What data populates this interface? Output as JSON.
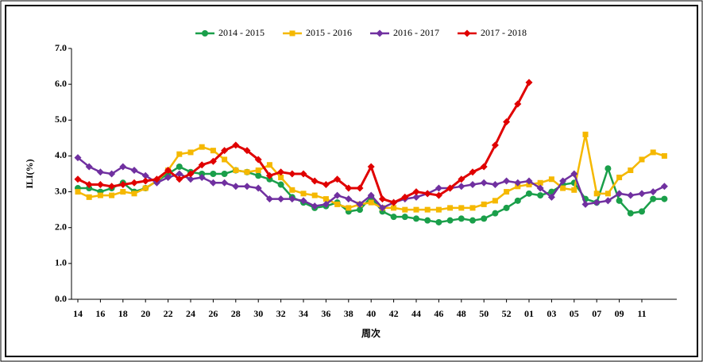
{
  "chart_data": {
    "type": "line",
    "x_label": "周次",
    "y_label": "ILI(%)",
    "categories": [
      "14",
      null,
      "16",
      null,
      "18",
      null,
      "20",
      null,
      "22",
      null,
      "24",
      null,
      "26",
      null,
      "28",
      null,
      "30",
      null,
      "32",
      null,
      "34",
      null,
      "36",
      null,
      "38",
      null,
      "40",
      null,
      "42",
      null,
      "44",
      null,
      "46",
      null,
      "48",
      null,
      "50",
      null,
      "52",
      null,
      "01",
      null,
      "03",
      null,
      "05",
      null,
      "07",
      null,
      "09",
      null,
      "11",
      null,
      null
    ],
    "ylim": [
      0,
      7
    ],
    "yticks": [
      {
        "value": 0,
        "label": "0.0"
      },
      {
        "value": 1,
        "label": "1.0"
      },
      {
        "value": 2,
        "label": "2.0"
      },
      {
        "value": 3,
        "label": "3.0"
      },
      {
        "value": 4,
        "label": "4.0"
      },
      {
        "value": 5,
        "label": "5.0"
      },
      {
        "value": 6,
        "label": "6.0"
      },
      {
        "value": 7,
        "label": "7.0"
      }
    ],
    "series": [
      {
        "name": "2014 - 2015",
        "color": "#1a9f4a",
        "marker": "circle",
        "values": [
          3.1,
          3.1,
          3.0,
          3.1,
          3.25,
          3.0,
          3.1,
          3.3,
          3.5,
          3.7,
          3.55,
          3.5,
          3.5,
          3.5,
          3.6,
          3.55,
          3.45,
          3.35,
          3.2,
          2.85,
          2.7,
          2.55,
          2.6,
          2.7,
          2.45,
          2.5,
          2.85,
          2.45,
          2.3,
          2.3,
          2.25,
          2.2,
          2.15,
          2.2,
          2.25,
          2.2,
          2.25,
          2.4,
          2.55,
          2.75,
          2.95,
          2.9,
          3.0,
          3.2,
          3.25,
          2.8,
          2.7,
          3.65,
          2.75,
          2.4,
          2.45,
          2.8,
          2.8
        ]
      },
      {
        "name": "2015 - 2016",
        "color": "#f5b800",
        "marker": "square",
        "values": [
          3.0,
          2.85,
          2.9,
          2.9,
          3.0,
          2.95,
          3.1,
          3.3,
          3.6,
          4.05,
          4.1,
          4.25,
          4.15,
          3.9,
          3.6,
          3.55,
          3.6,
          3.75,
          3.4,
          3.05,
          2.95,
          2.9,
          2.8,
          2.65,
          2.55,
          2.65,
          2.7,
          2.55,
          2.55,
          2.5,
          2.5,
          2.5,
          2.5,
          2.55,
          2.55,
          2.55,
          2.65,
          2.75,
          3.0,
          3.15,
          3.2,
          3.25,
          3.35,
          3.1,
          3.05,
          4.6,
          2.95,
          2.95,
          3.4,
          3.6,
          3.9,
          4.1,
          4.0
        ]
      },
      {
        "name": "2016 - 2017",
        "color": "#7030a0",
        "marker": "diamond",
        "values": [
          3.95,
          3.7,
          3.55,
          3.5,
          3.7,
          3.6,
          3.45,
          3.25,
          3.4,
          3.5,
          3.35,
          3.4,
          3.25,
          3.25,
          3.15,
          3.15,
          3.1,
          2.8,
          2.8,
          2.8,
          2.75,
          2.6,
          2.65,
          2.9,
          2.8,
          2.65,
          2.9,
          2.55,
          2.7,
          2.8,
          2.85,
          2.95,
          3.1,
          3.1,
          3.15,
          3.2,
          3.25,
          3.2,
          3.3,
          3.25,
          3.3,
          3.1,
          2.85,
          3.3,
          3.5,
          2.65,
          2.7,
          2.75,
          2.95,
          2.9,
          2.95,
          3.0,
          3.15
        ]
      },
      {
        "name": "2017 - 2018",
        "color": "#e00000",
        "marker": "diamond",
        "values": [
          3.35,
          3.2,
          3.2,
          3.15,
          3.2,
          3.25,
          3.3,
          3.35,
          3.6,
          3.35,
          3.5,
          3.75,
          3.85,
          4.15,
          4.3,
          4.15,
          3.9,
          3.45,
          3.55,
          3.5,
          3.5,
          3.3,
          3.2,
          3.35,
          3.1,
          3.1,
          3.7,
          2.8,
          2.7,
          2.85,
          3.0,
          2.95,
          2.9,
          3.1,
          3.35,
          3.55,
          3.7,
          4.3,
          4.95,
          5.45,
          6.05,
          null,
          null,
          null,
          null,
          null,
          null,
          null,
          null,
          null,
          null,
          null,
          null
        ]
      }
    ]
  }
}
